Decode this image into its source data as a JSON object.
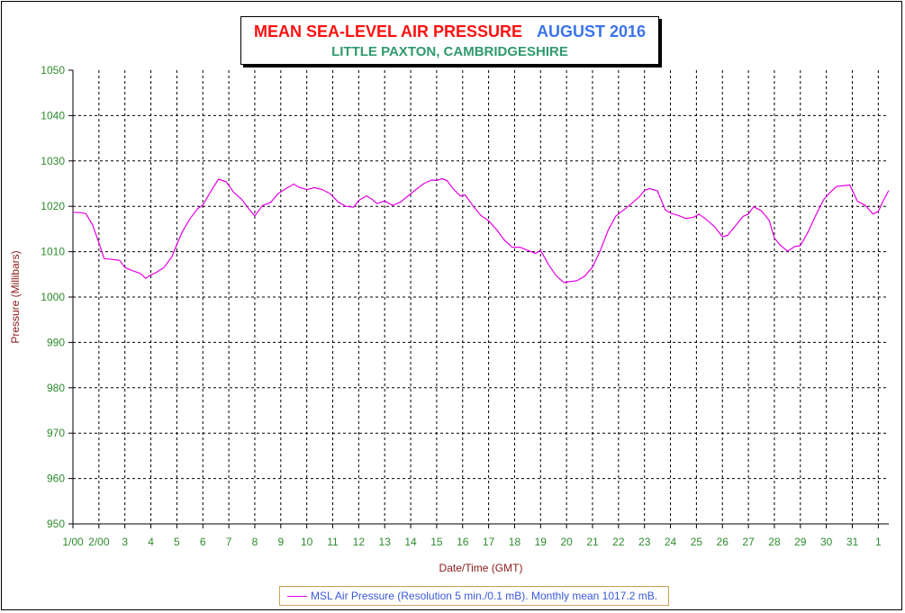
{
  "title": {
    "main": "MEAN SEA-LEVEL AIR PRESSURE",
    "period": "AUGUST 2016",
    "location": "LITTLE PAXTON, CAMBRIDGESHIRE"
  },
  "colors": {
    "title_main": "#ff1010",
    "title_period": "#3b73e8",
    "location": "#2f9a6e",
    "tick_labels": "#2e8b2e",
    "axis_labels": "#8b1a1a",
    "series": "#e400e4",
    "legend_text": "#3b59d9",
    "legend_border": "#c9a35a"
  },
  "chart_data": {
    "type": "line",
    "title": "MEAN SEA-LEVEL AIR PRESSURE   AUGUST 2016",
    "subtitle": "LITTLE PAXTON, CAMBRIDGESHIRE",
    "xlabel": "Date/Time (GMT)",
    "ylabel": "Pressure (Millibars)",
    "ylim": [
      950,
      1050
    ],
    "yticks": [
      950,
      960,
      970,
      980,
      990,
      1000,
      1010,
      1020,
      1030,
      1040,
      1050
    ],
    "xlim": [
      1,
      32.4
    ],
    "xticks": [
      {
        "day": 1,
        "label": "1/00"
      },
      {
        "day": 2,
        "label": "2/00"
      },
      {
        "day": 3,
        "label": "3"
      },
      {
        "day": 4,
        "label": "4"
      },
      {
        "day": 5,
        "label": "5"
      },
      {
        "day": 6,
        "label": "6"
      },
      {
        "day": 7,
        "label": "7"
      },
      {
        "day": 8,
        "label": "8"
      },
      {
        "day": 9,
        "label": "9"
      },
      {
        "day": 10,
        "label": "10"
      },
      {
        "day": 11,
        "label": "11"
      },
      {
        "day": 12,
        "label": "12"
      },
      {
        "day": 13,
        "label": "13"
      },
      {
        "day": 14,
        "label": "14"
      },
      {
        "day": 15,
        "label": "15"
      },
      {
        "day": 16,
        "label": "16"
      },
      {
        "day": 17,
        "label": "17"
      },
      {
        "day": 18,
        "label": "18"
      },
      {
        "day": 19,
        "label": "19"
      },
      {
        "day": 20,
        "label": "20"
      },
      {
        "day": 21,
        "label": "21"
      },
      {
        "day": 22,
        "label": "22"
      },
      {
        "day": 23,
        "label": "23"
      },
      {
        "day": 24,
        "label": "24"
      },
      {
        "day": 25,
        "label": "25"
      },
      {
        "day": 26,
        "label": "26"
      },
      {
        "day": 27,
        "label": "27"
      },
      {
        "day": 28,
        "label": "28"
      },
      {
        "day": 29,
        "label": "29"
      },
      {
        "day": 30,
        "label": "30"
      },
      {
        "day": 31,
        "label": "31"
      },
      {
        "day": 32,
        "label": "1"
      }
    ],
    "grid": true,
    "legend_position": "bottom-center",
    "series": [
      {
        "name": "MSL Air Pressure (Resolution 5 min./0.1 mB). Monthly mean 1017.2 mB.",
        "x": [
          1.0,
          1.3,
          1.5,
          1.75,
          2.0,
          2.2,
          2.5,
          2.8,
          3.0,
          3.3,
          3.6,
          3.8,
          4.0,
          4.2,
          4.5,
          4.8,
          5.0,
          5.2,
          5.5,
          5.8,
          6.0,
          6.3,
          6.6,
          6.9,
          7.2,
          7.5,
          7.8,
          8.0,
          8.3,
          8.6,
          8.9,
          9.2,
          9.5,
          9.7,
          10.0,
          10.3,
          10.6,
          10.9,
          11.2,
          11.5,
          11.8,
          12.0,
          12.3,
          12.5,
          12.7,
          13.0,
          13.3,
          13.6,
          13.9,
          14.2,
          14.5,
          14.8,
          15.0,
          15.2,
          15.4,
          15.6,
          15.9,
          16.1,
          16.4,
          16.7,
          17.0,
          17.3,
          17.6,
          17.9,
          18.2,
          18.5,
          18.8,
          19.0,
          19.3,
          19.6,
          19.9,
          20.1,
          20.4,
          20.7,
          21.0,
          21.3,
          21.6,
          21.9,
          22.2,
          22.5,
          22.8,
          23.0,
          23.2,
          23.5,
          23.8,
          24.0,
          24.3,
          24.6,
          24.9,
          25.1,
          25.4,
          25.7,
          26.0,
          26.2,
          26.5,
          26.8,
          27.0,
          27.2,
          27.5,
          27.8,
          28.0,
          28.2,
          28.5,
          28.8,
          29.0,
          29.3,
          29.6,
          29.9,
          30.1,
          30.4,
          30.6,
          30.9,
          31.2,
          31.5,
          31.8,
          32.0,
          32.2,
          32.4
        ],
        "values": [
          1018.7,
          1018.6,
          1018.4,
          1016.0,
          1012.0,
          1008.5,
          1008.3,
          1008.1,
          1006.5,
          1005.8,
          1005.2,
          1004.1,
          1004.9,
          1005.4,
          1006.5,
          1008.8,
          1011.6,
          1014.3,
          1017.2,
          1019.5,
          1020.3,
          1023.2,
          1026.0,
          1025.4,
          1023.0,
          1021.5,
          1019.2,
          1017.9,
          1020.2,
          1020.8,
          1022.8,
          1023.9,
          1024.9,
          1024.2,
          1023.7,
          1024.1,
          1023.7,
          1022.8,
          1021.0,
          1020.0,
          1019.8,
          1021.3,
          1022.3,
          1021.6,
          1020.6,
          1021.2,
          1020.2,
          1020.9,
          1022.3,
          1023.7,
          1025.0,
          1025.8,
          1025.7,
          1026.1,
          1025.7,
          1024.1,
          1022.3,
          1022.5,
          1020.1,
          1018.0,
          1016.8,
          1014.9,
          1012.6,
          1011.0,
          1011.0,
          1010.3,
          1009.6,
          1010.3,
          1007.2,
          1004.7,
          1003.2,
          1003.4,
          1003.6,
          1004.6,
          1006.6,
          1010.3,
          1014.7,
          1017.9,
          1019.2,
          1020.6,
          1022.1,
          1023.5,
          1023.9,
          1023.4,
          1019.2,
          1018.5,
          1018.0,
          1017.3,
          1017.6,
          1018.3,
          1017.0,
          1015.5,
          1013.3,
          1013.6,
          1015.7,
          1017.8,
          1018.3,
          1019.9,
          1019.0,
          1016.9,
          1013.0,
          1011.6,
          1010.1,
          1011.2,
          1011.3,
          1014.4,
          1018.1,
          1021.5,
          1022.8,
          1024.4,
          1024.5,
          1024.7,
          1021.1,
          1020.2,
          1018.3,
          1018.9,
          1021.3,
          1023.5
        ]
      }
    ]
  }
}
